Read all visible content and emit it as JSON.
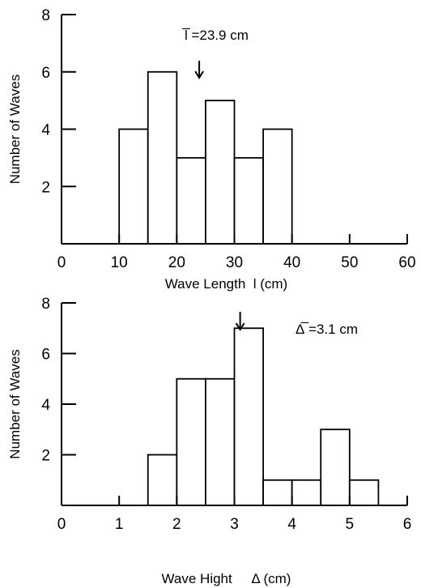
{
  "chart_data": [
    {
      "type": "bar",
      "histogram": true,
      "xlabel": "Wave Length  l (cm)",
      "ylabel": "Number of Waves",
      "xlim": [
        0,
        60
      ],
      "ylim": [
        0,
        8
      ],
      "x_ticks": [
        0,
        10,
        20,
        30,
        40,
        50,
        60
      ],
      "y_ticks": [
        2,
        4,
        6,
        8
      ],
      "bins": [
        {
          "start": 10,
          "end": 15,
          "value": 4
        },
        {
          "start": 15,
          "end": 20,
          "value": 6
        },
        {
          "start": 20,
          "end": 25,
          "value": 3
        },
        {
          "start": 25,
          "end": 30,
          "value": 5
        },
        {
          "start": 30,
          "end": 35,
          "value": 3
        },
        {
          "start": 35,
          "end": 40,
          "value": 4
        }
      ],
      "mean_marker": {
        "x": 23.9,
        "label": "l̅ =23.9 cm"
      }
    },
    {
      "type": "bar",
      "histogram": true,
      "xlabel": "Wave Hight     Δ (cm)",
      "ylabel": "Number of Waves",
      "xlim": [
        0,
        6
      ],
      "ylim": [
        0,
        8
      ],
      "x_ticks": [
        0,
        1,
        2,
        3,
        4,
        5,
        6
      ],
      "y_ticks": [
        2,
        4,
        6,
        8
      ],
      "bins": [
        {
          "start": 1.5,
          "end": 2.0,
          "value": 2
        },
        {
          "start": 2.0,
          "end": 2.5,
          "value": 5
        },
        {
          "start": 2.5,
          "end": 3.0,
          "value": 5
        },
        {
          "start": 3.0,
          "end": 3.5,
          "value": 7
        },
        {
          "start": 3.5,
          "end": 4.0,
          "value": 1
        },
        {
          "start": 4.0,
          "end": 4.5,
          "value": 1
        },
        {
          "start": 4.5,
          "end": 5.0,
          "value": 3
        },
        {
          "start": 5.0,
          "end": 5.5,
          "value": 1
        }
      ],
      "mean_marker": {
        "x": 3.1,
        "label": "Δ̅ =3.1 cm"
      }
    }
  ]
}
